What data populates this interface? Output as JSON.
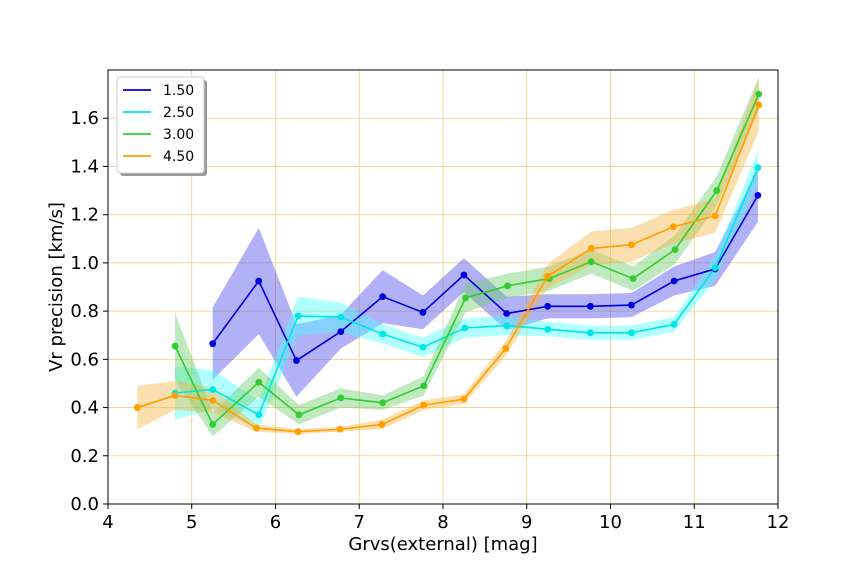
{
  "chart_data": {
    "type": "line",
    "xlabel": "Grvs(external) [mag]",
    "ylabel": "Vr precision [km/s]",
    "xlim": [
      4,
      12
    ],
    "ylim": [
      0,
      1.8
    ],
    "xticks": [
      4,
      5,
      6,
      7,
      8,
      9,
      10,
      11,
      12
    ],
    "yticks": [
      0.0,
      0.2,
      0.4,
      0.6,
      0.8,
      1.0,
      1.2,
      1.4,
      1.6
    ],
    "xtick_labels": [
      "4",
      "5",
      "6",
      "7",
      "8",
      "9",
      "10",
      "11",
      "12"
    ],
    "ytick_labels": [
      "0.0",
      "0.2",
      "0.4",
      "0.6",
      "0.8",
      "1.0",
      "1.2",
      "1.4",
      "1.6"
    ],
    "grid": true,
    "grid_color": "#f0d080",
    "legend_position": "top-left",
    "series": [
      {
        "name": "1.50",
        "color": "#0000dd",
        "fill": "#4444ee",
        "x": [
          5.25,
          5.8,
          6.25,
          6.78,
          7.28,
          7.76,
          8.25,
          8.76,
          9.25,
          9.76,
          10.25,
          10.76,
          11.25,
          11.76
        ],
        "y": [
          0.665,
          0.925,
          0.595,
          0.715,
          0.86,
          0.795,
          0.95,
          0.79,
          0.82,
          0.82,
          0.825,
          0.925,
          0.975,
          1.28
        ],
        "band": [
          0.15,
          0.22,
          0.15,
          0.07,
          0.11,
          0.07,
          0.07,
          0.07,
          0.05,
          0.05,
          0.05,
          0.06,
          0.07,
          0.11
        ]
      },
      {
        "name": "2.50",
        "color": "#00e5e5",
        "fill": "#44ffff",
        "x": [
          4.8,
          5.25,
          5.8,
          6.27,
          6.78,
          7.28,
          7.76,
          8.26,
          8.76,
          9.25,
          9.76,
          10.25,
          10.76,
          11.25,
          11.76
        ],
        "y": [
          0.46,
          0.475,
          0.37,
          0.78,
          0.775,
          0.705,
          0.65,
          0.73,
          0.74,
          0.725,
          0.71,
          0.71,
          0.745,
          0.98,
          1.395
        ],
        "band": [
          0.11,
          0.08,
          0.06,
          0.08,
          0.06,
          0.04,
          0.04,
          0.04,
          0.04,
          0.03,
          0.03,
          0.03,
          0.03,
          0.05,
          0.07
        ]
      },
      {
        "name": "3.00",
        "color": "#33cc33",
        "fill": "#66cc66",
        "x": [
          4.8,
          5.25,
          5.8,
          6.28,
          6.78,
          7.28,
          7.77,
          8.27,
          8.77,
          9.27,
          9.77,
          10.27,
          10.77,
          11.27,
          11.77
        ],
        "y": [
          0.655,
          0.33,
          0.505,
          0.37,
          0.44,
          0.42,
          0.49,
          0.855,
          0.905,
          0.935,
          1.005,
          0.935,
          1.055,
          1.3,
          1.7
        ],
        "band": [
          0.14,
          0.05,
          0.06,
          0.04,
          0.04,
          0.03,
          0.04,
          0.06,
          0.05,
          0.05,
          0.05,
          0.05,
          0.06,
          0.06,
          0.07
        ]
      },
      {
        "name": "4.50",
        "color": "#ff9f00",
        "fill": "#f5b240",
        "x": [
          4.35,
          4.8,
          5.25,
          5.77,
          6.27,
          6.77,
          7.27,
          7.77,
          8.25,
          8.75,
          9.25,
          9.77,
          10.25,
          10.75,
          11.25,
          11.77
        ],
        "y": [
          0.4,
          0.45,
          0.43,
          0.315,
          0.3,
          0.31,
          0.33,
          0.41,
          0.435,
          0.645,
          0.945,
          1.06,
          1.075,
          1.15,
          1.195,
          1.655
        ],
        "band": [
          0.09,
          0.06,
          0.05,
          0.015,
          0.01,
          0.01,
          0.02,
          0.02,
          0.02,
          0.03,
          0.05,
          0.07,
          0.07,
          0.07,
          0.07,
          0.11
        ]
      }
    ]
  }
}
